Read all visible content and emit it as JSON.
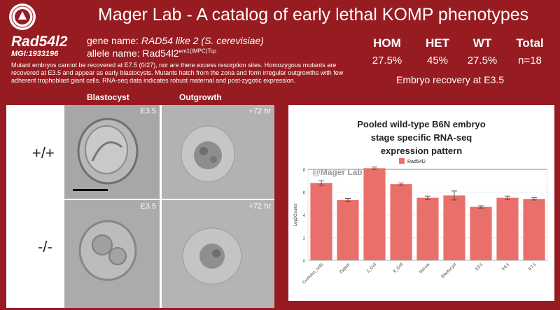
{
  "header": {
    "title": "Mager Lab - A catalog of early lethal KOMP phenotypes",
    "logo_icon": "university-seal-icon"
  },
  "gene": {
    "symbol": "Rad54l2",
    "mgi": "MGI:1933196",
    "name_label": "gene name: ",
    "name_value": "RAD54 like 2 (S. cerevisiae)",
    "allele_label": "allele name: ",
    "allele_base": "Rad54l2",
    "allele_sup": "em1(IMPC)Tcp"
  },
  "summary": "Mutant embryos cannot be recovered at E7.5 (0/27), nor are there excess resorption sites. Homozygous mutants are recovered at E3.5 and appear as early blastocysts. Mutants hatch from the zona and form irregular outgrowths with few adherent trophoblast giant cells. RNA-seq data indicates robust maternal and post-zygotic expression.",
  "genotypes": {
    "columns": [
      {
        "label": "HOM",
        "value": "27.5%"
      },
      {
        "label": "HET",
        "value": "45%"
      },
      {
        "label": "WT",
        "value": "27.5%"
      },
      {
        "label": "Total",
        "value": "n=18"
      }
    ],
    "caption": "Embryo recovery at E3.5"
  },
  "images": {
    "col_headers": [
      "Blastocyst",
      "Outgrowth"
    ],
    "row_labels": [
      "+/+",
      "-/-"
    ],
    "tags": [
      "E3.5",
      "+72 hr",
      "E3.5",
      "+72 hr"
    ]
  },
  "chart_data": {
    "type": "bar",
    "title": [
      "Pooled wild-type B6N embryo",
      "stage specific RNA-seq",
      "expression pattern"
    ],
    "legend": "Rad54l2",
    "watermark": "@Mager Lab",
    "ylabel": "Log2Counts",
    "ylim": [
      0,
      8
    ],
    "yticks": [
      0,
      2,
      4,
      6,
      8
    ],
    "categories": [
      "Cumulus_cells",
      "Zygote",
      "2_Cell",
      "8_Cell",
      "Morula",
      "Blastocyst",
      "E3.5",
      "E6.5",
      "E7.5"
    ],
    "values": [
      6.8,
      5.3,
      8.1,
      6.7,
      5.5,
      5.7,
      4.7,
      5.5,
      5.4
    ],
    "errors": [
      0.2,
      0.15,
      0.1,
      0.1,
      0.15,
      0.4,
      0.1,
      0.15,
      0.1
    ],
    "bar_color": "#e9706a",
    "grid": true
  }
}
